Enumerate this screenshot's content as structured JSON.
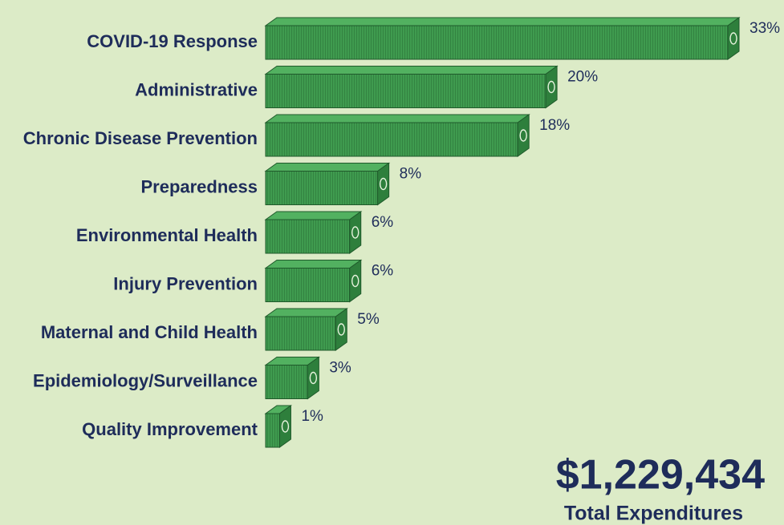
{
  "chart_data": {
    "type": "bar",
    "categories": [
      "COVID-19 Response",
      "Administrative",
      "Chronic Disease Prevention",
      "Preparedness",
      "Environmental Health",
      "Injury Prevention",
      "Maternal and Child Health",
      "Epidemiology/Surveillance",
      "Quality Improvement"
    ],
    "values": [
      33,
      20,
      18,
      8,
      6,
      6,
      5,
      3,
      1
    ],
    "value_labels": [
      "33%",
      "20%",
      "18%",
      "8%",
      "6%",
      "6%",
      "5%",
      "3%",
      "1%"
    ],
    "color": "#3f9b4f",
    "total": "$1,229,434",
    "total_label": "Total Expenditures"
  }
}
